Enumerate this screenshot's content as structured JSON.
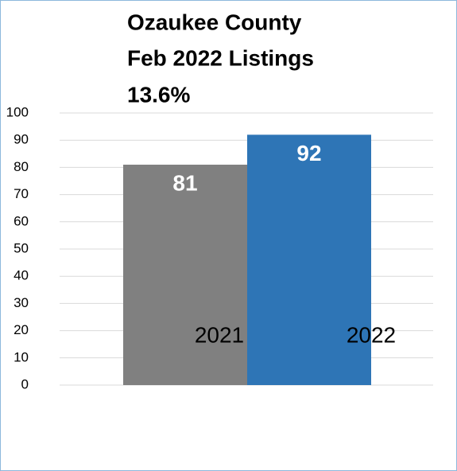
{
  "chart_data": {
    "type": "bar",
    "title": [
      "Ozaukee County",
      "Feb 2022 Listings",
      "13.6%"
    ],
    "categories": [
      "2021",
      "2022"
    ],
    "values": [
      81,
      92
    ],
    "colors": [
      "#808080",
      "#2e75b6"
    ],
    "ylim": [
      0,
      100
    ],
    "yticks": [
      0,
      10,
      20,
      30,
      40,
      50,
      60,
      70,
      80,
      90,
      100
    ],
    "grid": true
  }
}
